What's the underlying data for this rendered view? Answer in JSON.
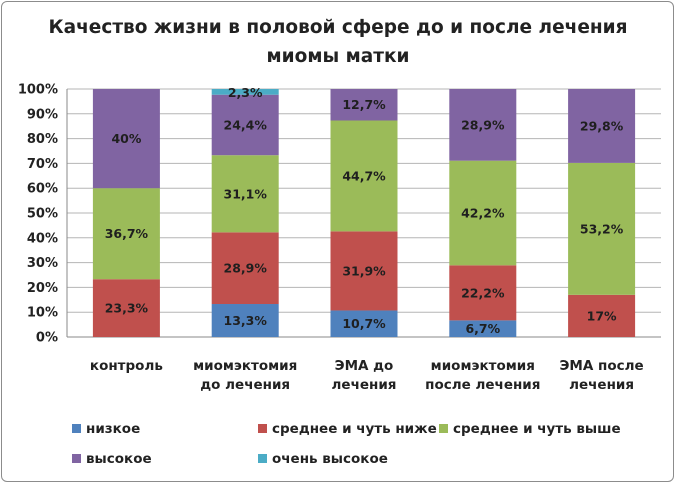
{
  "chart_data": {
    "type": "bar",
    "stacked": true,
    "title_lines": [
      "Качество жизни в половой сфере до и после лечения",
      "миомы матки"
    ],
    "categories": [
      [
        "контроль"
      ],
      [
        "миомэктомия",
        "до лечения"
      ],
      [
        "ЭМА до",
        "лечения"
      ],
      [
        "миомэктомия",
        "после лечения"
      ],
      [
        "ЭМА после",
        "лечения"
      ]
    ],
    "yticks": [
      "0%",
      "10%",
      "20%",
      "30%",
      "40%",
      "50%",
      "60%",
      "70%",
      "80%",
      "90%",
      "100%"
    ],
    "ylim": [
      0,
      100
    ],
    "grid": true,
    "legend_position": "bottom",
    "series": [
      {
        "name": "низкое",
        "color": "#4f81bd",
        "values": [
          0,
          13.3,
          10.7,
          6.7,
          0
        ],
        "labels": [
          "",
          "13,3%",
          "10,7%",
          "6,7%",
          ""
        ]
      },
      {
        "name": "среднее и чуть ниже",
        "color": "#c0504d",
        "values": [
          23.3,
          28.9,
          31.9,
          22.2,
          17
        ],
        "labels": [
          "23,3%",
          "28,9%",
          "31,9%",
          "22,2%",
          "17%"
        ]
      },
      {
        "name": "среднее и чуть выше",
        "color": "#9bbb59",
        "values": [
          36.7,
          31.1,
          44.7,
          42.2,
          53.2
        ],
        "labels": [
          "36,7%",
          "31,1%",
          "44,7%",
          "42,2%",
          "53,2%"
        ]
      },
      {
        "name": "высокое",
        "color": "#8064a2",
        "values": [
          40,
          24.4,
          12.7,
          28.9,
          29.8
        ],
        "labels": [
          "40%",
          "24,4%",
          "12,7%",
          "28,9%",
          "29,8%"
        ]
      },
      {
        "name": "очень высокое",
        "color": "#4bacc6",
        "values": [
          0,
          2.3,
          0,
          0,
          0
        ],
        "labels": [
          "",
          "2,3%",
          "",
          "",
          ""
        ]
      }
    ]
  }
}
